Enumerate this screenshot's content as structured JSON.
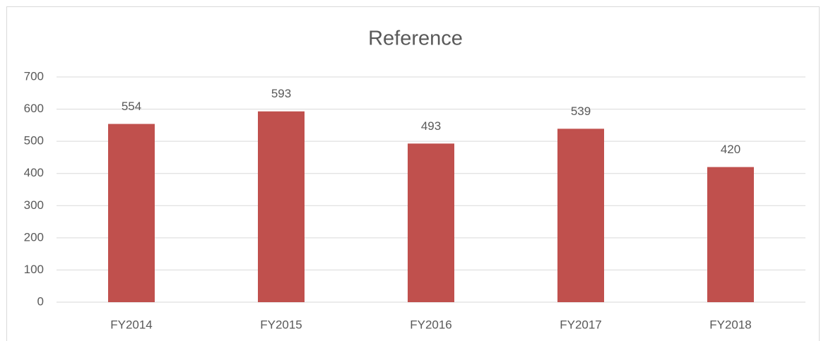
{
  "chart_data": {
    "type": "bar",
    "title": "Reference",
    "categories": [
      "FY2014",
      "FY2015",
      "FY2016",
      "FY2017",
      "FY2018"
    ],
    "values": [
      554,
      593,
      493,
      539,
      420
    ],
    "color": "#c0504d",
    "ylim": [
      0,
      700
    ],
    "yticks": [
      0,
      100,
      200,
      300,
      400,
      500,
      600,
      700
    ],
    "grid": true
  }
}
